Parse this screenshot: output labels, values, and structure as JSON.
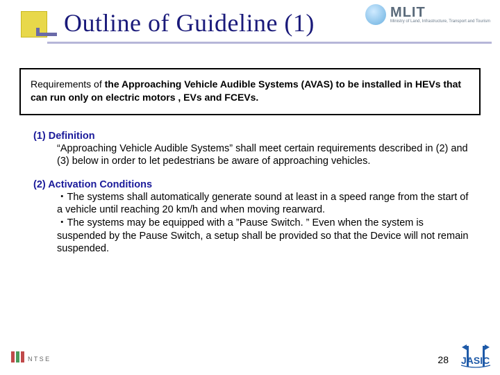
{
  "title": "Outline of Guideline (1)",
  "mlit": {
    "name": "MLIT",
    "sub": "Ministry of Land, Infrastructure, Transport and Tourism"
  },
  "requirements_box": {
    "pre": "Requirements of ",
    "bold": "the Approaching Vehicle Audible Systems (AVAS) to be installed in HEVs that can run only on electric motors , EVs and FCEVs."
  },
  "sections": [
    {
      "heading": "(1) Definition",
      "body": "“Approaching Vehicle Audible Systems” shall meet certain requirements described in (2) and (3) below in order to let pedestrians be aware of approaching vehicles."
    },
    {
      "heading": "(2) Activation Conditions",
      "body": "・The systems shall automatically generate sound at least in a speed range from the start of a vehicle until reaching 20 km/h and when moving rearward.\n・The systems may be equipped with a ”Pause Switch. ” Even when the system is suspended by the Pause Switch, a setup shall be provided so that the Device will not remain suspended."
    }
  ],
  "page_number": "28",
  "colors": {
    "title_color": "#1a1a7a",
    "heading_color": "#1a1a9a",
    "accent_yellow": "#e8d84a",
    "underline": "#7a7ab8",
    "jasic": "#1e5aa8",
    "ntsel_green": "#4a9a5a",
    "ntsel_red": "#c04a4a"
  }
}
